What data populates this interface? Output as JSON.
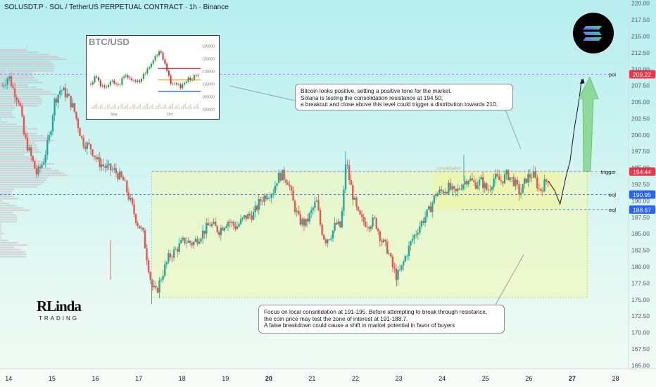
{
  "header": {
    "title": "SOLUSDT.P · SOL / TetherUS PERPETUAL CONTRACT · 1h · Binance"
  },
  "chart_data": {
    "type": "candlestick",
    "symbol": "SOLUSDT.P",
    "timeframe": "1h",
    "y_axis": {
      "ticks": [
        "165.00",
        "167.50",
        "170.00",
        "172.50",
        "175.00",
        "177.50",
        "180.00",
        "182.50",
        "185.00",
        "187.50",
        "190.00",
        "192.50",
        "195.00",
        "197.50",
        "200.00",
        "202.50",
        "205.00",
        "207.50",
        "210.00",
        "212.50",
        "215.00",
        "217.50",
        "220.00"
      ],
      "ylim": [
        164.5,
        220.5
      ]
    },
    "x_axis": {
      "ticks": [
        {
          "label": "14",
          "bold": false
        },
        {
          "label": "15",
          "bold": false
        },
        {
          "label": "16",
          "bold": false
        },
        {
          "label": "17",
          "bold": false
        },
        {
          "label": "18",
          "bold": false
        },
        {
          "label": "19",
          "bold": false
        },
        {
          "label": "20",
          "bold": true
        },
        {
          "label": "21",
          "bold": false
        },
        {
          "label": "22",
          "bold": false
        },
        {
          "label": "23",
          "bold": false
        },
        {
          "label": "24",
          "bold": false
        },
        {
          "label": "25",
          "bold": false
        },
        {
          "label": "26",
          "bold": false
        },
        {
          "label": "27",
          "bold": true
        },
        {
          "label": "28",
          "bold": false
        }
      ],
      "xlim": [
        13.8,
        28.3
      ]
    },
    "price_path": [
      [
        13.85,
        207.5
      ],
      [
        14.0,
        209.0
      ],
      [
        14.1,
        207.0
      ],
      [
        14.25,
        205.0
      ],
      [
        14.35,
        200.0
      ],
      [
        14.5,
        197.0
      ],
      [
        14.65,
        194.0
      ],
      [
        14.8,
        196.0
      ],
      [
        14.95,
        200.0
      ],
      [
        15.05,
        205.0
      ],
      [
        15.2,
        207.0
      ],
      [
        15.35,
        206.0
      ],
      [
        15.5,
        204.0
      ],
      [
        15.7,
        199.0
      ],
      [
        15.9,
        198.0
      ],
      [
        16.05,
        196.0
      ],
      [
        16.25,
        195.0
      ],
      [
        16.45,
        194.5
      ],
      [
        16.65,
        193.0
      ],
      [
        16.8,
        190.0
      ],
      [
        16.95,
        187.0
      ],
      [
        17.1,
        185.0
      ],
      [
        17.2,
        181.0
      ],
      [
        17.3,
        177.0
      ],
      [
        17.4,
        176.0
      ],
      [
        17.55,
        179.0
      ],
      [
        17.7,
        181.5
      ],
      [
        17.85,
        182.5
      ],
      [
        18.05,
        184.0
      ],
      [
        18.25,
        183.5
      ],
      [
        18.45,
        185.0
      ],
      [
        18.65,
        186.5
      ],
      [
        18.85,
        185.5
      ],
      [
        19.05,
        187.0
      ],
      [
        19.25,
        186.0
      ],
      [
        19.45,
        187.5
      ],
      [
        19.65,
        188.0
      ],
      [
        19.8,
        190.0
      ],
      [
        19.95,
        191.0
      ],
      [
        20.1,
        191.5
      ],
      [
        20.2,
        193.5
      ],
      [
        20.3,
        194.0
      ],
      [
        20.45,
        193.0
      ],
      [
        20.55,
        190.0
      ],
      [
        20.7,
        187.0
      ],
      [
        20.85,
        186.5
      ],
      [
        21.0,
        188.5
      ],
      [
        21.1,
        190.0
      ],
      [
        21.2,
        186.0
      ],
      [
        21.3,
        184.0
      ],
      [
        21.45,
        185.0
      ],
      [
        21.55,
        186.5
      ],
      [
        21.65,
        186.0
      ],
      [
        21.72,
        190.0
      ],
      [
        21.78,
        196.5
      ],
      [
        21.85,
        193.5
      ],
      [
        21.95,
        190.5
      ],
      [
        22.05,
        188.0
      ],
      [
        22.15,
        187.0
      ],
      [
        22.3,
        186.5
      ],
      [
        22.45,
        187.0
      ],
      [
        22.6,
        184.0
      ],
      [
        22.75,
        182.5
      ],
      [
        22.85,
        180.0
      ],
      [
        22.95,
        178.5
      ],
      [
        23.05,
        179.5
      ],
      [
        23.15,
        181.5
      ],
      [
        23.3,
        184.0
      ],
      [
        23.5,
        186.5
      ],
      [
        23.7,
        188.5
      ],
      [
        23.85,
        191.0
      ],
      [
        24.0,
        191.5
      ],
      [
        24.15,
        192.0
      ],
      [
        24.3,
        191.0
      ],
      [
        24.45,
        192.5
      ],
      [
        24.6,
        193.5
      ],
      [
        24.75,
        192.5
      ],
      [
        24.9,
        193.0
      ],
      [
        25.05,
        191.5
      ],
      [
        25.2,
        193.5
      ],
      [
        25.35,
        193.0
      ],
      [
        25.5,
        194.0
      ],
      [
        25.65,
        193.0
      ],
      [
        25.8,
        191.0
      ],
      [
        25.95,
        193.5
      ],
      [
        26.1,
        194.0
      ],
      [
        26.25,
        191.5
      ],
      [
        26.35,
        192.5
      ],
      [
        26.45,
        193.5
      ]
    ],
    "zones": [
      {
        "name": "consolidation",
        "x": [
          17.3,
          27.35
        ],
        "y": [
          175.3,
          194.45
        ]
      },
      {
        "name": "inner",
        "x": [
          23.8,
          26.75
        ],
        "y": [
          188.67,
          194.45
        ]
      }
    ],
    "levels": [
      {
        "label": "poi",
        "value": 209.22,
        "badge": "209.22",
        "badge_color": "#f23645",
        "style": "dashed",
        "color": "#b56bd2"
      },
      {
        "label": "trigger",
        "value": 194.44,
        "badge": "194.44",
        "badge_color": "#f23645",
        "style": "dashed",
        "color": "#b56bd2"
      },
      {
        "label": "eql",
        "value": 190.95,
        "badge": "190.95",
        "badge_color": "#2962ff",
        "style": "dashed",
        "color": "#4a77c9"
      },
      {
        "label": "eql",
        "value": 188.67,
        "badge": "188.67",
        "badge_color": "#2962ff",
        "style": "dashed",
        "color": "#4a77c9"
      }
    ],
    "zone_label": "consolidation",
    "projection": [
      [
        26.45,
        193.0
      ],
      [
        26.6,
        191.5
      ],
      [
        26.72,
        189.5
      ],
      [
        26.85,
        193.5
      ],
      [
        26.95,
        196.0
      ],
      [
        27.05,
        201.0
      ],
      [
        27.15,
        205.0
      ],
      [
        27.22,
        208.5
      ]
    ],
    "arrow_target": [
      27.05,
      208.5
    ]
  },
  "annotations": {
    "top": [
      "Bitcoin looks positive, setting a positive tone for the market.",
      "Solana is testing the consolidation resistance at 194.50;",
      "a breakout and close above this level could trigger a distribution towards 210."
    ],
    "bottom": [
      "Focus on local consolidation at 191-195. Before attempting to break through resistance,",
      "the coin price may test the zone of interest at 191-188.7.",
      "A false breakdown could cause a shift in market potential in favor of buyers"
    ]
  },
  "inset": {
    "title": "BTC/USD",
    "y_ticks": [
      "125000",
      "120000",
      "115000",
      "110000",
      "105000",
      "100000"
    ],
    "x_ticks": [
      "Sep",
      "Oct"
    ],
    "levels": [
      {
        "value": 116000,
        "color": "#f23645"
      },
      {
        "value": 107000,
        "color": "#2962ff"
      },
      {
        "value": 111500,
        "color": "#f7a21b"
      }
    ],
    "price_path": [
      [
        0,
        110000
      ],
      [
        0.05,
        113000
      ],
      [
        0.1,
        108500
      ],
      [
        0.15,
        109000
      ],
      [
        0.2,
        111000
      ],
      [
        0.25,
        109000
      ],
      [
        0.3,
        112500
      ],
      [
        0.35,
        113000
      ],
      [
        0.4,
        110500
      ],
      [
        0.45,
        111000
      ],
      [
        0.5,
        114500
      ],
      [
        0.55,
        117000
      ],
      [
        0.58,
        120000
      ],
      [
        0.62,
        122500
      ],
      [
        0.64,
        123500
      ],
      [
        0.66,
        121000
      ],
      [
        0.7,
        116000
      ],
      [
        0.74,
        109000
      ],
      [
        0.78,
        111000
      ],
      [
        0.82,
        108500
      ],
      [
        0.86,
        110000
      ],
      [
        0.9,
        112000
      ],
      [
        0.95,
        112500
      ],
      [
        1.0,
        113000
      ]
    ]
  },
  "logo": {
    "big": "RLinda",
    "sub": "TRADING"
  },
  "colors": {
    "up": "#26a69a",
    "down": "#ef5350",
    "zone_fill": "#f2f7b0",
    "arrow": "#7bd07f",
    "badge_red": "#f23645",
    "badge_blue": "#2962ff"
  }
}
